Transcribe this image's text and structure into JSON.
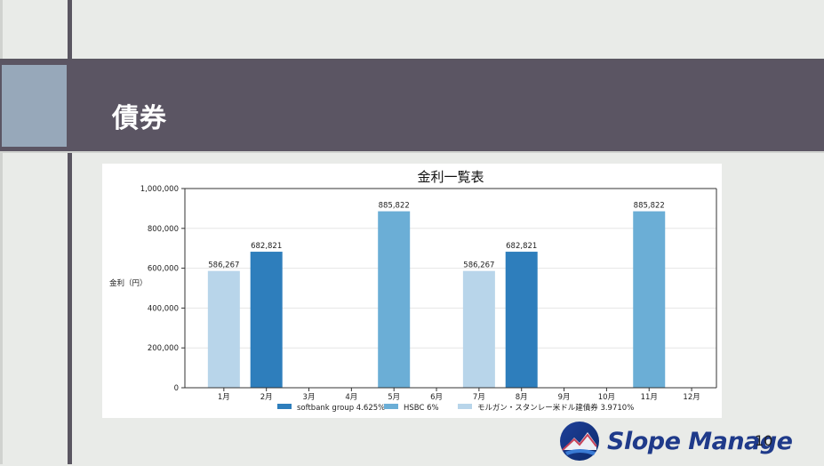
{
  "slide": {
    "title": "債券",
    "page_number": "10"
  },
  "logo": {
    "text": "Slope Manage"
  },
  "colors": {
    "softbank": "#2e7ebc",
    "hsbc": "#6baed6",
    "morgan": "#b8d5ea",
    "band": "#5b5563",
    "accent_square": "#97a8ba"
  },
  "chart_data": {
    "type": "bar",
    "title": "金利一覧表",
    "xlabel": "",
    "ylabel": "金利（円）",
    "ylim": [
      0,
      1000000
    ],
    "yticks": [
      "0",
      "200,000",
      "400,000",
      "600,000",
      "800,000",
      "1,000,000"
    ],
    "categories": [
      "1月",
      "2月",
      "3月",
      "4月",
      "5月",
      "6月",
      "7月",
      "8月",
      "9月",
      "10月",
      "11月",
      "12月"
    ],
    "series": [
      {
        "name": "softbank group 4.625%",
        "values": [
          0,
          682821,
          0,
          0,
          0,
          0,
          0,
          682821,
          0,
          0,
          0,
          0
        ]
      },
      {
        "name": "HSBC 6%",
        "values": [
          0,
          0,
          0,
          0,
          885822,
          0,
          0,
          0,
          0,
          0,
          885822,
          0
        ]
      },
      {
        "name": "モルガン・スタンレー米ドル建債券 3.9710%",
        "values": [
          586267,
          0,
          0,
          0,
          0,
          0,
          586267,
          0,
          0,
          0,
          0,
          0
        ]
      }
    ],
    "data_labels": [
      "586,267",
      "682,821",
      "885,822",
      "586,267",
      "682,821",
      "885,822"
    ],
    "grid": "horizontal",
    "legend_position": "bottom"
  }
}
